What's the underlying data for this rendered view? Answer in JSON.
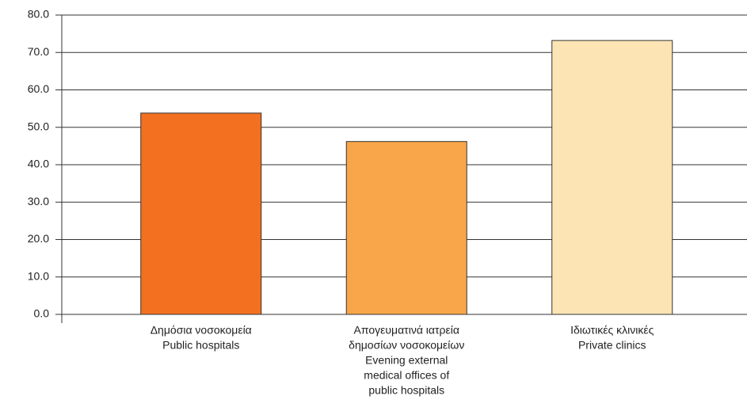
{
  "chart_data": {
    "type": "bar",
    "categories": [
      [
        "Δημόσια νοσοκομεία",
        "Public hospitals"
      ],
      [
        "Απογευματινά ιατρεία",
        "δημοσίων νοσοκομείων",
        "Evening external",
        "medical offices of",
        "public hospitals"
      ],
      [
        "Ιδιωτικές κλινικές",
        "Private clinics"
      ]
    ],
    "values": [
      53.8,
      46.2,
      73.2
    ],
    "colors": [
      "#f37021",
      "#f9a64a",
      "#fde4b4"
    ],
    "ylim": [
      0,
      80
    ],
    "yticks": [
      {
        "value": 0,
        "label": "0.0"
      },
      {
        "value": 10,
        "label": "10.0"
      },
      {
        "value": 20,
        "label": "20.0"
      },
      {
        "value": 30,
        "label": "30.0"
      },
      {
        "value": 40,
        "label": "40.0"
      },
      {
        "value": 50,
        "label": "50.0"
      },
      {
        "value": 60,
        "label": "60.0"
      },
      {
        "value": 70,
        "label": "70.0"
      },
      {
        "value": 80,
        "label": "80.0"
      }
    ],
    "grid": true
  }
}
